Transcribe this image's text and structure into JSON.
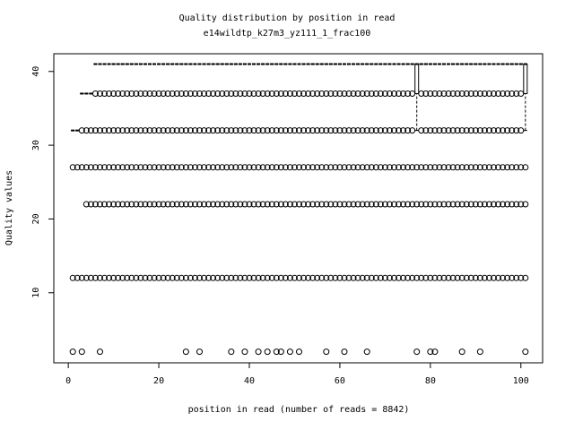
{
  "chart_data": {
    "type": "box",
    "title": "Quality distribution by position in read",
    "subtitle": "e14wildtp_k27m3_yz111_1_frac100",
    "x_label": "position in read (number of reads = 8842)",
    "y_label": "Quality values",
    "xlim": [
      -3.2,
      104.8
    ],
    "ylim": [
      0.5,
      42.4
    ],
    "xticks": [
      0,
      20,
      40,
      60,
      80,
      100
    ],
    "yticks": [
      10,
      20,
      30,
      40
    ],
    "color": "#000000",
    "boxes": [
      {
        "x": [
          1,
          2
        ],
        "stats": [
          32,
          32,
          32,
          32,
          32
        ]
      },
      {
        "x": [
          3,
          4,
          5
        ],
        "stats": [
          37,
          37,
          37,
          37,
          37
        ]
      },
      {
        "x": [
          6,
          7,
          8,
          9,
          10,
          11,
          12,
          13,
          14,
          15,
          16,
          17,
          18,
          19,
          20,
          21,
          22,
          23,
          24,
          25,
          26,
          27,
          28,
          29,
          30,
          31,
          32,
          33,
          34,
          35,
          36,
          37,
          38,
          39,
          40,
          41,
          42,
          43,
          44,
          45,
          46,
          47,
          48,
          49,
          50,
          51,
          52,
          53,
          54,
          55,
          56,
          57,
          58,
          59,
          60,
          61,
          62,
          63,
          64,
          65,
          66,
          67,
          68,
          69,
          70,
          71,
          72,
          73,
          74,
          75,
          76,
          78,
          79,
          80,
          81,
          82,
          83,
          84,
          85,
          86,
          87,
          88,
          89,
          90,
          91,
          92,
          93,
          94,
          95,
          96,
          97,
          98,
          99,
          100
        ],
        "stats": [
          41,
          41,
          41,
          41,
          41
        ]
      },
      {
        "x": [
          77,
          101
        ],
        "stats": [
          32,
          37,
          41,
          41,
          41
        ]
      }
    ],
    "outliers": [
      {
        "y": 37,
        "x": [
          6,
          7,
          8,
          9,
          10,
          11,
          12,
          13,
          14,
          15,
          16,
          17,
          18,
          19,
          20,
          21,
          22,
          23,
          24,
          25,
          26,
          27,
          28,
          29,
          30,
          31,
          32,
          33,
          34,
          35,
          36,
          37,
          38,
          39,
          40,
          41,
          42,
          43,
          44,
          45,
          46,
          47,
          48,
          49,
          50,
          51,
          52,
          53,
          54,
          55,
          56,
          57,
          58,
          59,
          60,
          61,
          62,
          63,
          64,
          65,
          66,
          67,
          68,
          69,
          70,
          71,
          72,
          73,
          74,
          75,
          76,
          78,
          79,
          80,
          81,
          82,
          83,
          84,
          85,
          86,
          87,
          88,
          89,
          90,
          91,
          92,
          93,
          94,
          95,
          96,
          97,
          98,
          99,
          100
        ]
      },
      {
        "y": 32,
        "x": [
          3,
          4,
          5,
          6,
          7,
          8,
          9,
          10,
          11,
          12,
          13,
          14,
          15,
          16,
          17,
          18,
          19,
          20,
          21,
          22,
          23,
          24,
          25,
          26,
          27,
          28,
          29,
          30,
          31,
          32,
          33,
          34,
          35,
          36,
          37,
          38,
          39,
          40,
          41,
          42,
          43,
          44,
          45,
          46,
          47,
          48,
          49,
          50,
          51,
          52,
          53,
          54,
          55,
          56,
          57,
          58,
          59,
          60,
          61,
          62,
          63,
          64,
          65,
          66,
          67,
          68,
          69,
          70,
          71,
          72,
          73,
          74,
          75,
          76,
          78,
          79,
          80,
          81,
          82,
          83,
          84,
          85,
          86,
          87,
          88,
          89,
          90,
          91,
          92,
          93,
          94,
          95,
          96,
          97,
          98,
          99,
          100
        ]
      },
      {
        "y": 27,
        "x": [
          1,
          2,
          3,
          4,
          5,
          6,
          7,
          8,
          9,
          10,
          11,
          12,
          13,
          14,
          15,
          16,
          17,
          18,
          19,
          20,
          21,
          22,
          23,
          24,
          25,
          26,
          27,
          28,
          29,
          30,
          31,
          32,
          33,
          34,
          35,
          36,
          37,
          38,
          39,
          40,
          41,
          42,
          43,
          44,
          45,
          46,
          47,
          48,
          49,
          50,
          51,
          52,
          53,
          54,
          55,
          56,
          57,
          58,
          59,
          60,
          61,
          62,
          63,
          64,
          65,
          66,
          67,
          68,
          69,
          70,
          71,
          72,
          73,
          74,
          75,
          76,
          77,
          78,
          79,
          80,
          81,
          82,
          83,
          84,
          85,
          86,
          87,
          88,
          89,
          90,
          91,
          92,
          93,
          94,
          95,
          96,
          97,
          98,
          99,
          100,
          101
        ]
      },
      {
        "y": 22,
        "x": [
          4,
          5,
          6,
          7,
          8,
          9,
          10,
          11,
          12,
          13,
          14,
          15,
          16,
          17,
          18,
          19,
          20,
          21,
          22,
          23,
          24,
          25,
          26,
          27,
          28,
          29,
          30,
          31,
          32,
          33,
          34,
          35,
          36,
          37,
          38,
          39,
          40,
          41,
          42,
          43,
          44,
          45,
          46,
          47,
          48,
          49,
          50,
          51,
          52,
          53,
          54,
          55,
          56,
          57,
          58,
          59,
          60,
          61,
          62,
          63,
          64,
          65,
          66,
          67,
          68,
          69,
          70,
          71,
          72,
          73,
          74,
          75,
          76,
          77,
          78,
          79,
          80,
          81,
          82,
          83,
          84,
          85,
          86,
          87,
          88,
          89,
          90,
          91,
          92,
          93,
          94,
          95,
          96,
          97,
          98,
          99,
          100,
          101
        ]
      },
      {
        "y": 12,
        "x": [
          1,
          2,
          3,
          4,
          5,
          6,
          7,
          8,
          9,
          10,
          11,
          12,
          13,
          14,
          15,
          16,
          17,
          18,
          19,
          20,
          21,
          22,
          23,
          24,
          25,
          26,
          27,
          28,
          29,
          30,
          31,
          32,
          33,
          34,
          35,
          36,
          37,
          38,
          39,
          40,
          41,
          42,
          43,
          44,
          45,
          46,
          47,
          48,
          49,
          50,
          51,
          52,
          53,
          54,
          55,
          56,
          57,
          58,
          59,
          60,
          61,
          62,
          63,
          64,
          65,
          66,
          67,
          68,
          69,
          70,
          71,
          72,
          73,
          74,
          75,
          76,
          77,
          78,
          79,
          80,
          81,
          82,
          83,
          84,
          85,
          86,
          87,
          88,
          89,
          90,
          91,
          92,
          93,
          94,
          95,
          96,
          97,
          98,
          99,
          100,
          101
        ]
      },
      {
        "y": 2,
        "x": [
          1,
          3,
          7,
          26,
          29,
          36,
          39,
          42,
          44,
          46,
          47,
          49,
          51,
          57,
          61,
          66,
          77,
          80,
          81,
          87,
          91,
          101
        ]
      }
    ]
  }
}
